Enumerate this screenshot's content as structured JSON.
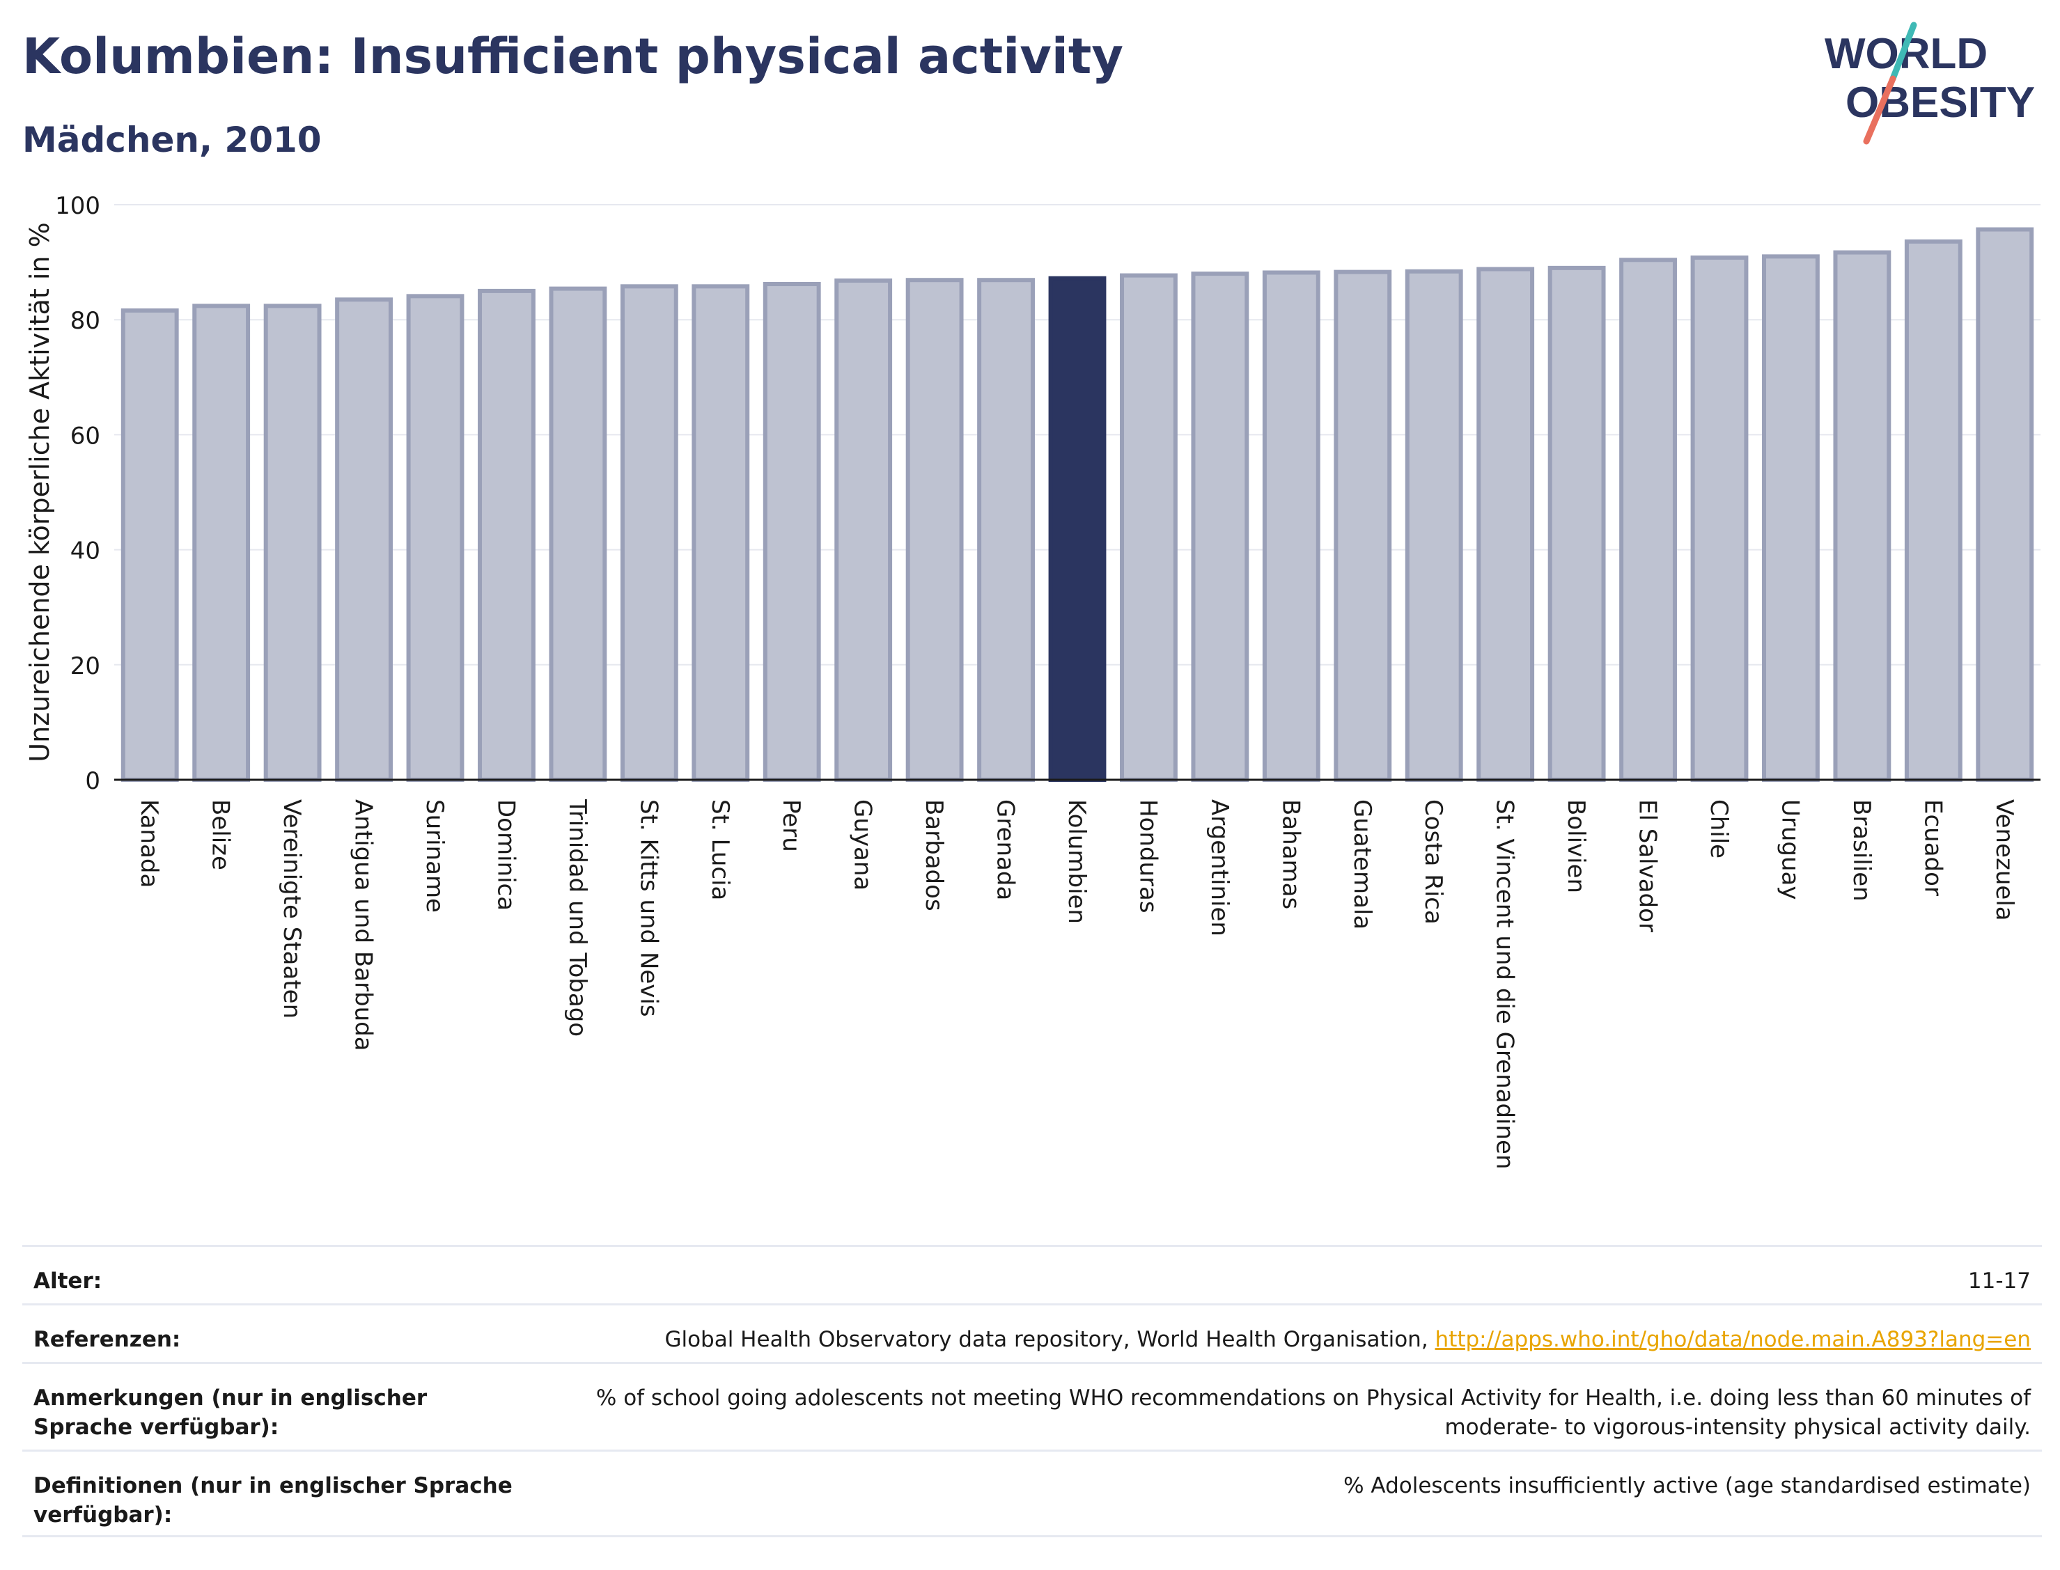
{
  "header": {
    "title": "Kolumbien: Insufficient physical activity",
    "subtitle": "Mädchen, 2010"
  },
  "logo": {
    "line1": "WORLD",
    "line2": "OBESITY"
  },
  "colors": {
    "highlight": "#2b3560",
    "bar": "#bec2d1",
    "bar_border": "#9aa0b8",
    "accent_teal": "#3fb9b5",
    "accent_red": "#e9705e"
  },
  "chart_data": {
    "type": "bar",
    "ylabel": "Unzureichende körperliche Aktivität in %",
    "ylim": [
      0,
      100
    ],
    "yticks": [
      0,
      20,
      40,
      60,
      80,
      100
    ],
    "grid": true,
    "highlight": "Kolumbien",
    "categories": [
      "Kanada",
      "Belize",
      "Vereinigte Staaten",
      "Antigua und Barbuda",
      "Suriname",
      "Dominica",
      "Trinidad und Tobago",
      "St. Kitts und Nevis",
      "St. Lucia",
      "Peru",
      "Guyana",
      "Barbados",
      "Grenada",
      "Kolumbien",
      "Honduras",
      "Argentinien",
      "Bahamas",
      "Guatemala",
      "Costa Rica",
      "St. Vincent und die Grenadinen",
      "Bolivien",
      "El Salvador",
      "Chile",
      "Uruguay",
      "Brasilien",
      "Ecuador",
      "Venezuela"
    ],
    "values": [
      81.6,
      82.4,
      82.4,
      83.5,
      84.1,
      85.0,
      85.4,
      85.8,
      85.8,
      86.2,
      86.8,
      86.9,
      86.9,
      87.2,
      87.7,
      88.0,
      88.2,
      88.3,
      88.4,
      88.8,
      89.0,
      90.4,
      90.8,
      91.0,
      91.7,
      93.6,
      95.7
    ]
  },
  "meta": {
    "age_label": "Alter:",
    "age_value": "11-17",
    "refs_label": "Referenzen:",
    "refs_text": "Global Health Observatory data repository, World Health Organisation,",
    "refs_link": "http://apps.who.int/gho/data/node.main.A893?lang=en",
    "notes_label": "Anmerkungen (nur in englischer Sprache verfügbar):",
    "notes_value": "% of school going adolescents not meeting WHO recommendations on Physical Activity for Health, i.e. doing less than 60 minutes of moderate- to vigorous-intensity physical activity daily.",
    "defs_label": "Definitionen (nur in englischer Sprache verfügbar):",
    "defs_value": "% Adolescents insufficiently active (age standardised estimate)"
  }
}
